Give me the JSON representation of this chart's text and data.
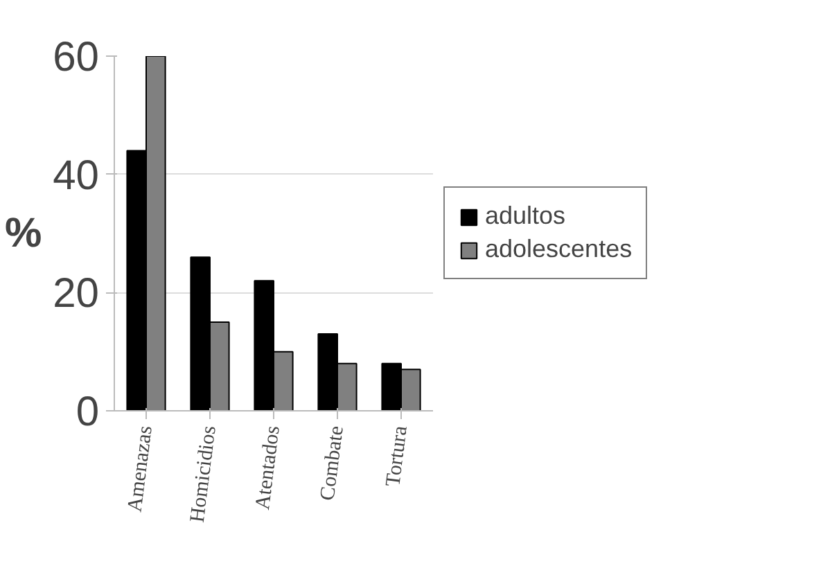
{
  "chart_data": {
    "type": "bar",
    "ylabel": "%",
    "categories": [
      "Amenazas",
      "Homicidios",
      "Atentados",
      "Combate",
      "Tortura"
    ],
    "series": [
      {
        "name": "adultos",
        "color": "#000000",
        "values": [
          44,
          26,
          22,
          13,
          8
        ]
      },
      {
        "name": "adolescentes",
        "color": "#808080",
        "values": [
          60,
          15,
          10,
          8,
          7
        ]
      }
    ],
    "ylim": [
      0,
      60
    ],
    "yticks": [
      0,
      20,
      40,
      60
    ],
    "grid": "y",
    "legend": "right"
  }
}
